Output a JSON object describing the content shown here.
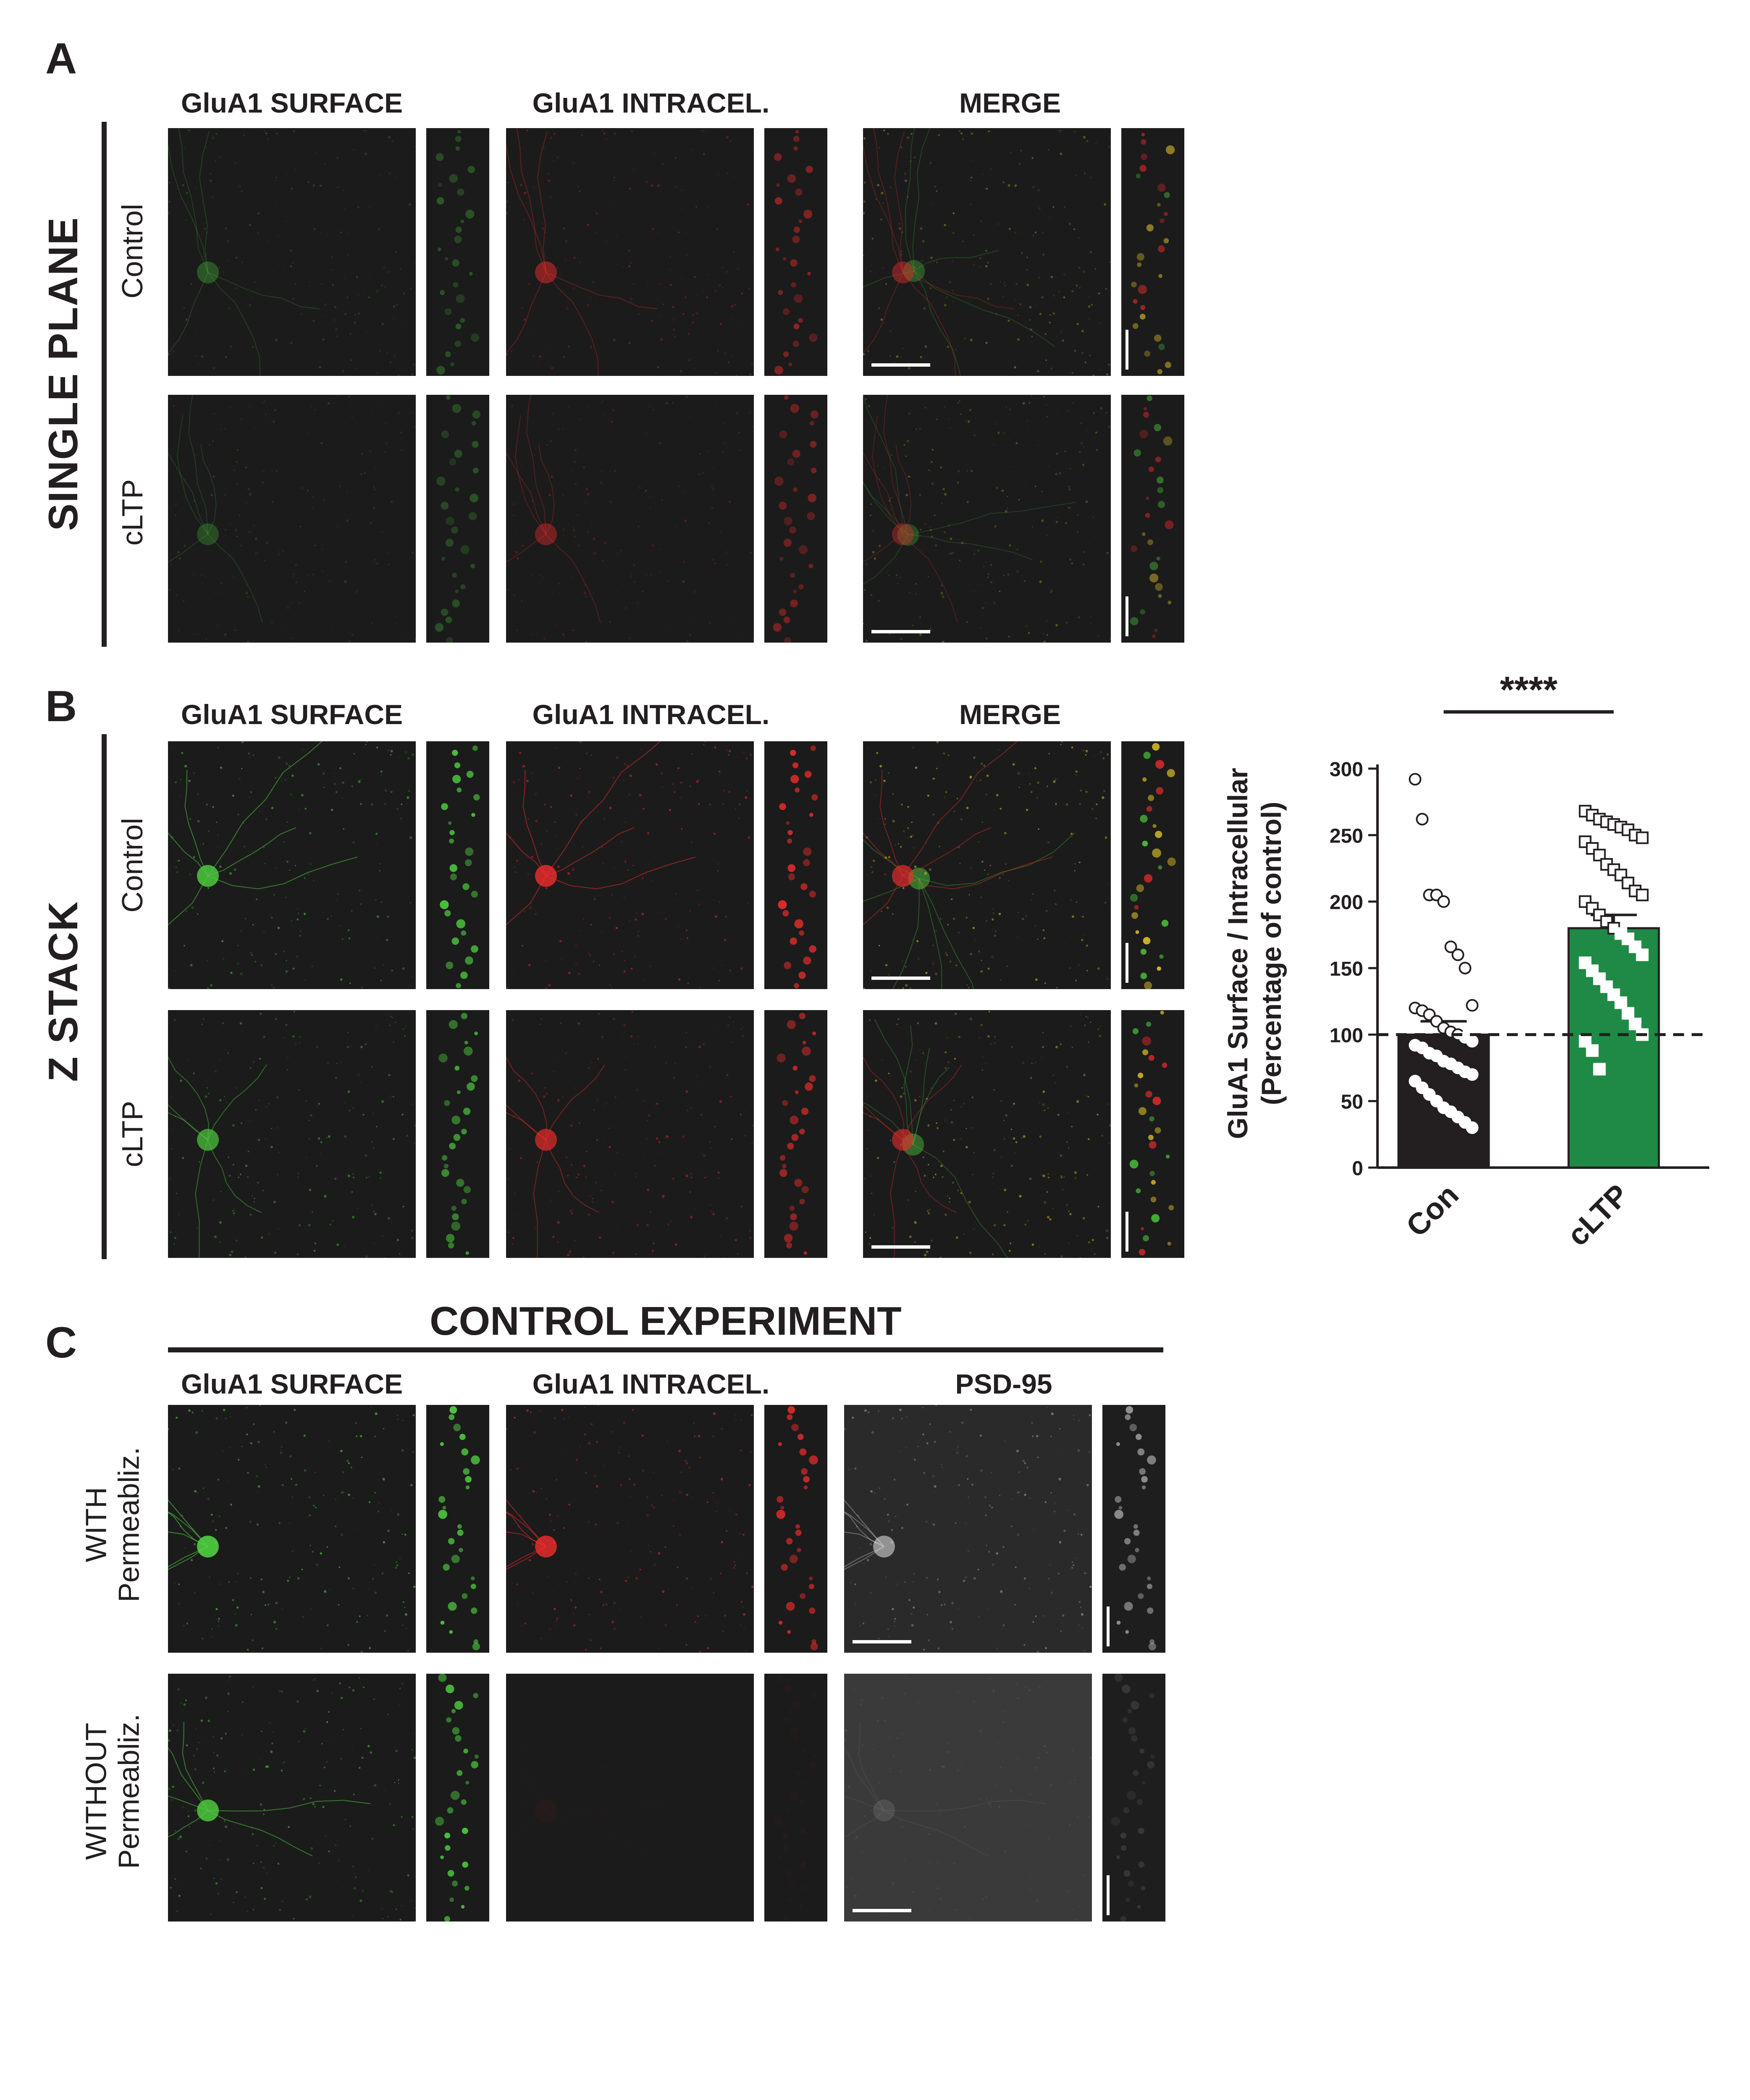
{
  "panel_letters": {
    "a": "A",
    "b": "B",
    "c": "C"
  },
  "section_labels": {
    "a": "SINGLE PLANE",
    "b": "Z STACK"
  },
  "columns": {
    "surface": "GluA1 SURFACE",
    "intracellular": "GluA1 INTRACEL.",
    "merge": "MERGE",
    "psd95": "PSD-95"
  },
  "row_labels": {
    "control": "Control",
    "cltp": "cLTP",
    "with_line1": "WITH",
    "with_line2": "Permeabliz.",
    "without_line1": "WITHOUT",
    "without_line2": "Permeabliz."
  },
  "control_experiment_title": "CONTROL EXPERIMENT",
  "colors": {
    "surface": "#4fd040",
    "intracellular": "#ef2c2c",
    "merge": "#e7c92a",
    "psd95": "#d0d0d0",
    "bar_con": "#231f20",
    "bar_cltp": "#1e8a45"
  },
  "chart_data": {
    "type": "bar",
    "categories": [
      "Con",
      "cLTP"
    ],
    "values": [
      100,
      180
    ],
    "errors": [
      10,
      10
    ],
    "ylabel_line1": "GluA1 Surface / Intracellular",
    "ylabel_line2": "(Percentage of control)",
    "ylim": [
      0,
      300
    ],
    "yticks": [
      "0",
      "50",
      "100",
      "150",
      "200",
      "250",
      "300"
    ],
    "reference_line": 100,
    "significance": "****",
    "points_con": [
      292,
      262,
      205,
      205,
      200,
      166,
      160,
      150,
      122,
      120,
      118,
      115,
      110,
      105,
      102,
      100,
      98,
      95,
      92,
      90,
      86,
      84,
      80,
      78,
      75,
      72,
      70,
      65,
      60,
      55,
      50,
      45,
      42,
      38,
      34,
      30
    ],
    "points_cltp": [
      268,
      265,
      262,
      260,
      258,
      256,
      254,
      250,
      248,
      245,
      240,
      235,
      228,
      224,
      220,
      214,
      208,
      205,
      200,
      195,
      190,
      185,
      180,
      176,
      172,
      166,
      160,
      154,
      148,
      142,
      136,
      130,
      124,
      116,
      108,
      100,
      95,
      88,
      74
    ]
  }
}
